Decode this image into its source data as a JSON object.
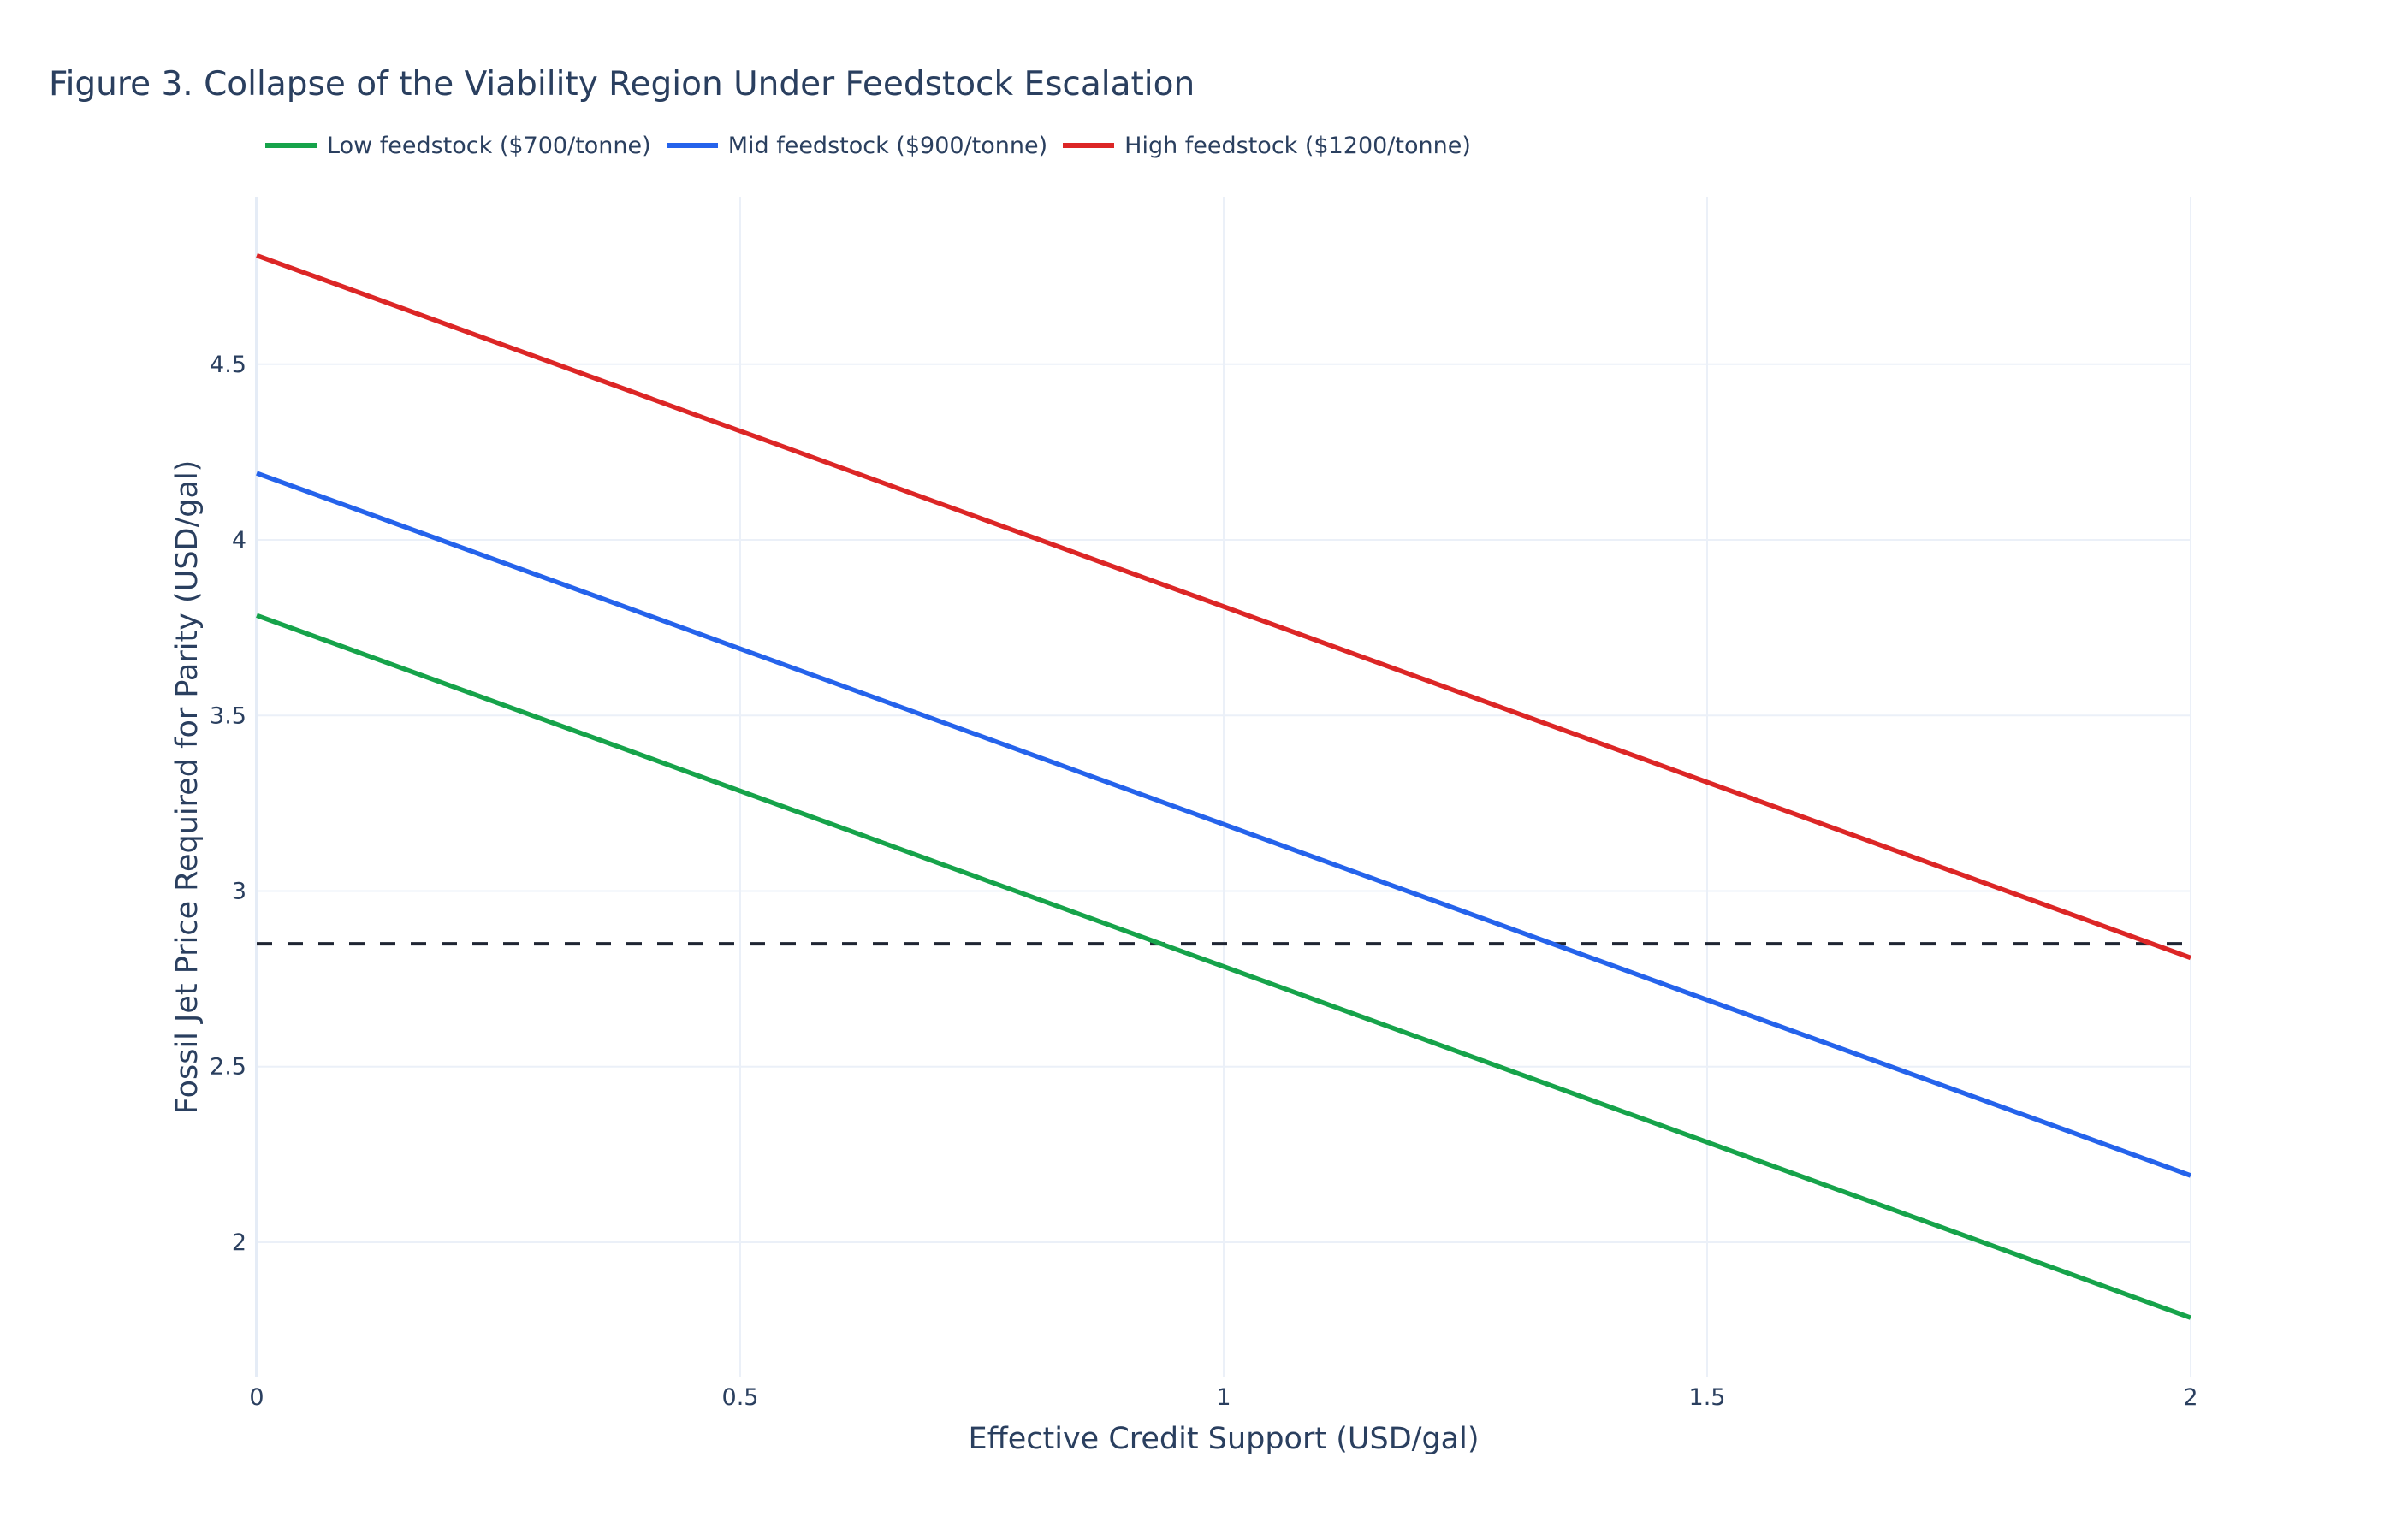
{
  "title": "Figure 3. Collapse of the Viability Region Under Feedstock Escalation",
  "legend": [
    {
      "label": "Low feedstock ($700/tonne)",
      "color": "#16a34a"
    },
    {
      "label": "Mid feedstock ($900/tonne)",
      "color": "#2563eb"
    },
    {
      "label": "High feedstock ($1200/tonne)",
      "color": "#dc2626"
    }
  ],
  "axes": {
    "x_title": "Effective Credit Support (USD/gal)",
    "y_title": "Fossil Jet Price Required for Parity (USD/gal)",
    "x_ticks": [
      "0",
      "0.5",
      "1",
      "1.5",
      "2"
    ],
    "y_ticks": [
      "2",
      "2.5",
      "3",
      "3.5",
      "4",
      "4.5"
    ]
  },
  "chart_data": {
    "type": "line",
    "title": "Figure 3. Collapse of the Viability Region Under Feedstock Escalation",
    "xlabel": "Effective Credit Support (USD/gal)",
    "ylabel": "Fossil Jet Price Required for Parity (USD/gal)",
    "x": [
      0,
      0.5,
      1,
      1.5,
      2
    ],
    "xlim": [
      0,
      2
    ],
    "ylim": [
      1.615,
      4.977
    ],
    "x_tick_values": [
      0,
      0.5,
      1,
      1.5,
      2
    ],
    "y_tick_values": [
      2,
      2.5,
      3,
      3.5,
      4,
      4.5
    ],
    "grid": true,
    "legend_position": "top-left, horizontal",
    "series": [
      {
        "name": "Low feedstock ($700/tonne)",
        "color": "#16a34a",
        "values": [
          3.785,
          3.285,
          2.785,
          2.285,
          1.785
        ]
      },
      {
        "name": "Mid feedstock ($900/tonne)",
        "color": "#2563eb",
        "values": [
          4.19,
          3.69,
          3.19,
          2.69,
          2.19
        ]
      },
      {
        "name": "High feedstock ($1200/tonne)",
        "color": "#dc2626",
        "values": [
          4.81,
          4.31,
          3.81,
          3.31,
          2.81
        ]
      }
    ],
    "reference_lines": [
      {
        "type": "horizontal",
        "y": 2.85,
        "style": "dashed",
        "color": "#1f2533"
      }
    ]
  }
}
